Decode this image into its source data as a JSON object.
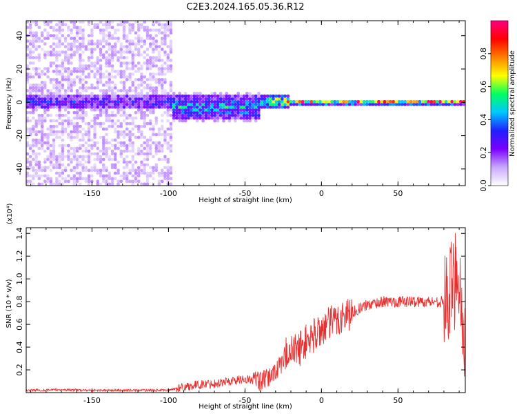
{
  "figure": {
    "title": "C2E3.2024.165.05.36.R12"
  },
  "chart_data": [
    {
      "type": "heatmap",
      "xlabel": "Height of straight line (km)",
      "ylabel": "Frequency (Hz)",
      "xlim": [
        -193,
        94
      ],
      "ylim": [
        -50,
        49
      ],
      "xticks": [
        -150,
        -100,
        -50,
        0,
        50
      ],
      "yticks": [
        -40,
        -20,
        0,
        20,
        40
      ],
      "colorbar": {
        "label": "Normalized spectral amplitude",
        "range": [
          0,
          1
        ],
        "ticks": [
          0.0,
          0.2,
          0.4,
          0.6,
          0.8
        ],
        "tick_labels": [
          "0.0",
          "0.2",
          "0.4",
          "0.6",
          "0.8"
        ],
        "colors": [
          "#ffffff",
          "#c8a8ff",
          "#7a00ff",
          "#2020ff",
          "#00c8ff",
          "#00ff60",
          "#ffff00",
          "#ff8000",
          "#ff0000",
          "#ff0080"
        ]
      },
      "regions": [
        {
          "x": [
            -193,
            -98
          ],
          "freq": [
            -50,
            49
          ],
          "amplitude": 0.15,
          "note": "scattered noise"
        },
        {
          "x": [
            -193,
            -98
          ],
          "freq": [
            -8,
            8
          ],
          "amplitude": 0.3
        },
        {
          "x": [
            -98,
            -40
          ],
          "freq": [
            -12,
            6
          ],
          "amplitude": 0.45
        },
        {
          "x": [
            -40,
            -20
          ],
          "freq": [
            -4,
            5
          ],
          "amplitude": 0.7
        },
        {
          "x": [
            -20,
            94
          ],
          "freq": [
            -1.5,
            1.5
          ],
          "amplitude": 0.92
        }
      ]
    },
    {
      "type": "line",
      "xlabel": "Height of straight line (km)",
      "ylabel": "SNR (10 * v/v)",
      "yscale_label": "(x10⁴)",
      "xlim": [
        -193,
        94
      ],
      "ylim": [
        0,
        1.45
      ],
      "xticks": [
        -150,
        -100,
        -50,
        0,
        50
      ],
      "yticks": [
        0.2,
        0.4,
        0.6,
        0.8,
        1.0,
        1.2,
        1.4
      ],
      "ytick_labels": [
        "0.2",
        "0.4",
        "0.6",
        "0.8",
        "1.0",
        "1.2",
        "1.4"
      ],
      "color": "#e83030",
      "series": [
        {
          "x": [
            -193,
            -170,
            -150,
            -130,
            -110,
            -100,
            -90,
            -80,
            -70,
            -60,
            -50,
            -40,
            -35,
            -30,
            -25,
            -22,
            -20,
            -15,
            -10,
            -5,
            0,
            5,
            10,
            15,
            20,
            25,
            30,
            40,
            50,
            60,
            70,
            75,
            80,
            83,
            85,
            87,
            89,
            91,
            93
          ],
          "y": [
            0.02,
            0.025,
            0.02,
            0.02,
            0.02,
            0.02,
            0.05,
            0.07,
            0.08,
            0.1,
            0.12,
            0.1,
            0.12,
            0.2,
            0.25,
            0.4,
            0.35,
            0.38,
            0.45,
            0.5,
            0.56,
            0.6,
            0.64,
            0.68,
            0.71,
            0.74,
            0.77,
            0.8,
            0.8,
            0.8,
            0.8,
            0.8,
            0.8,
            0.82,
            0.9,
            1.0,
            1.2,
            0.8,
            0.5
          ]
        }
      ]
    }
  ]
}
